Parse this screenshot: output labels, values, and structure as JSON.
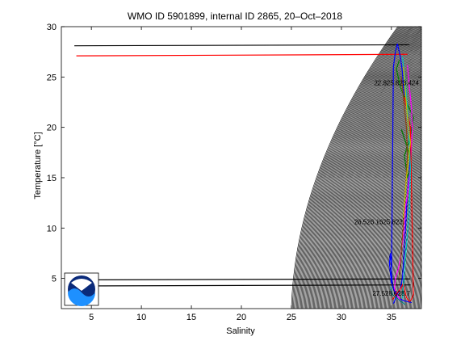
{
  "chart_data": {
    "type": "line",
    "title": "WMO ID 5901899, internal ID 2865, 20–Oct–2018",
    "xlabel": "Salinity",
    "ylabel": "Temperature [°C]",
    "xlim": [
      2,
      38
    ],
    "ylim": [
      2,
      30
    ],
    "x_ticks": [
      "5",
      "10",
      "15",
      "20",
      "25",
      "30",
      "35"
    ],
    "y_ticks": [
      "5",
      "10",
      "15",
      "20",
      "25",
      "30"
    ],
    "grid": false,
    "density_isolines": "sigma-theta contours spaced 0.1 kg/m³",
    "density_labels": [
      {
        "text": "22.825.823.424.",
        "x": 35.6,
        "y": 24.2
      },
      {
        "text": "26.526.1625.823.",
        "x": 33.8,
        "y": 10.4
      },
      {
        "text": "27.528.628.7",
        "x": 35.0,
        "y": 3.3
      }
    ],
    "series": [
      {
        "color": "#000000",
        "x": [
          3.3,
          36.8
        ],
        "y": [
          28.1,
          28.2
        ]
      },
      {
        "color": "#ff0000",
        "x": [
          3.5,
          36.6
        ],
        "y": [
          27.1,
          27.25
        ]
      },
      {
        "color": "#000000",
        "x": [
          3.3,
          36.9
        ],
        "y": [
          4.85,
          4.95
        ]
      },
      {
        "color": "#000000",
        "x": [
          3.3,
          36.9
        ],
        "y": [
          4.25,
          4.35
        ]
      },
      {
        "color": "#0000ff",
        "x": [
          35.2,
          35.5,
          35.9,
          36.1,
          36.2,
          36.3,
          36.4,
          36.5,
          36.6,
          36.8,
          36.9,
          36.8,
          36.6,
          36.3,
          36.2,
          36.1,
          35.9,
          35.6,
          35.4,
          35.2,
          35.0,
          34.9,
          34.8,
          34.9,
          35.1,
          35.4,
          35.8,
          36.2,
          36.6,
          37.0
        ],
        "y": [
          2.5,
          3.2,
          4.0,
          5.0,
          6.5,
          8.0,
          9.8,
          11.5,
          13.5,
          15.5,
          17.5,
          19.5,
          21.5,
          23.0,
          24.0,
          25.5,
          27.0,
          28.3,
          27.5,
          26.0,
          4.5,
          5.5,
          6.5,
          7.5,
          4.3,
          3.5,
          3.0,
          2.8,
          2.7,
          2.6
        ]
      },
      {
        "color": "#008000",
        "x": [
          36.0,
          36.3,
          36.7,
          37.0,
          36.6,
          36.3,
          36.9,
          37.2,
          36.5,
          35.9,
          35.5,
          35.8
        ],
        "y": [
          19.8,
          18.9,
          17.6,
          16.2,
          15.0,
          17.2,
          19.1,
          21.0,
          22.5,
          24.0,
          25.8,
          26.7
        ]
      },
      {
        "color": "#ff00ff",
        "x": [
          36.6,
          36.8,
          37.0,
          37.1,
          37.0,
          36.9,
          36.7,
          36.4,
          36.3,
          36.1,
          35.9,
          35.7,
          35.4,
          35.3,
          35.6,
          35.9
        ],
        "y": [
          26.2,
          24.0,
          22.0,
          20.0,
          18.0,
          16.0,
          14.0,
          12.0,
          10.0,
          8.5,
          7.0,
          6.0,
          5.0,
          4.0,
          3.3,
          2.8
        ]
      },
      {
        "color": "#ff0000",
        "x": [
          35.1,
          35.4,
          35.8,
          36.2,
          36.5,
          36.8,
          37.0,
          37.2,
          36.9,
          36.6,
          36.3
        ],
        "y": [
          2.9,
          3.3,
          3.8,
          4.5,
          3.1,
          2.7,
          2.9,
          3.4,
          20.0,
          21.5,
          23.0
        ]
      },
      {
        "color": "#00bfbf",
        "x": [
          36.1,
          36.4,
          36.7,
          36.9,
          36.8,
          36.4,
          36.1
        ],
        "y": [
          27.0,
          24.5,
          20.5,
          16.0,
          12.0,
          7.0,
          3.0
        ]
      },
      {
        "color": "#8b4513",
        "x": [
          36.0,
          36.3,
          36.5,
          36.6,
          36.3,
          35.8
        ],
        "y": [
          25.0,
          22.0,
          20.0,
          17.0,
          12.0,
          5.0
        ]
      },
      {
        "color": "#bfbf00",
        "x": [
          36.2,
          36.6,
          36.9,
          36.5,
          36.2
        ],
        "y": [
          26.0,
          21.0,
          18.5,
          15.0,
          11.0
        ]
      },
      {
        "color": "#008080",
        "x": [
          34.9,
          35.1,
          35.6,
          36.1,
          36.4
        ],
        "y": [
          4.2,
          3.4,
          3.0,
          2.6,
          2.4
        ]
      }
    ]
  },
  "logo": {
    "text": "NOAA",
    "background": "#0a2a7a",
    "accent": "#1e90ff"
  }
}
